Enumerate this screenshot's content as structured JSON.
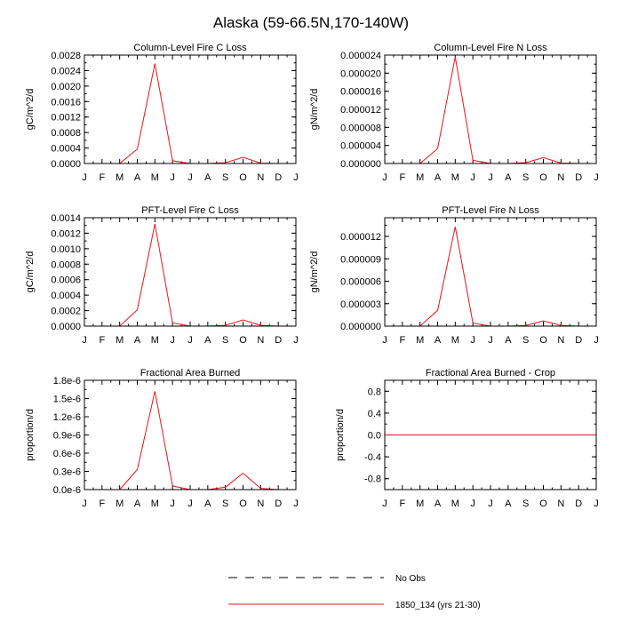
{
  "figure": {
    "title": "Alaska (59-66.5N,170-140W)"
  },
  "legend": {
    "entries": [
      {
        "label": "No Obs",
        "style": "dashed",
        "color": "#000000"
      },
      {
        "label": "1850_134 (yrs 21-30)",
        "style": "solid",
        "color": "#e8141c"
      }
    ]
  },
  "chart_data": [
    {
      "type": "line",
      "title": "Column-Level Fire C Loss",
      "ylabel": "gC/m^2/d",
      "categories": [
        "J",
        "F",
        "M",
        "A",
        "M",
        "J",
        "J",
        "A",
        "S",
        "O",
        "N",
        "D",
        "J"
      ],
      "ylim": [
        0,
        0.0028
      ],
      "yticks": [
        "0.0000",
        "0.0004",
        "0.0008",
        "0.0012",
        "0.0016",
        "0.0020",
        "0.0024",
        "0.0028"
      ],
      "ytick_values": [
        0,
        0.0004,
        0.0008,
        0.0012,
        0.0016,
        0.002,
        0.0024,
        0.0028
      ],
      "series": [
        {
          "name": "1850_134 (yrs 21-30)",
          "color": "#e8141c",
          "values": [
            0,
            0,
            0,
            0.00037,
            0.00258,
            7e-05,
            0,
            0,
            2e-05,
            0.00016,
            1e-05,
            0,
            0
          ]
        }
      ]
    },
    {
      "type": "line",
      "title": "Column-Level Fire N Loss",
      "ylabel": "gN/m^2/d",
      "categories": [
        "J",
        "F",
        "M",
        "A",
        "M",
        "J",
        "J",
        "A",
        "S",
        "O",
        "N",
        "D",
        "J"
      ],
      "ylim": [
        0,
        2.4e-05
      ],
      "yticks": [
        "0.000000",
        "0.000004",
        "0.000008",
        "0.000012",
        "0.000016",
        "0.000020",
        "0.000024"
      ],
      "ytick_values": [
        0,
        4e-06,
        8e-06,
        1.2e-05,
        1.6e-05,
        2e-05,
        2.4e-05
      ],
      "series": [
        {
          "name": "1850_134 (yrs 21-30)",
          "color": "#e8141c",
          "values": [
            0,
            0,
            0,
            3.3e-06,
            2.36e-05,
            7e-07,
            0,
            0,
            2e-07,
            1.3e-06,
            1e-07,
            0,
            0
          ]
        }
      ]
    },
    {
      "type": "line",
      "title": "PFT-Level Fire C Loss",
      "ylabel": "gC/m^2/d",
      "categories": [
        "J",
        "F",
        "M",
        "A",
        "M",
        "J",
        "J",
        "A",
        "S",
        "O",
        "N",
        "D",
        "J"
      ],
      "ylim": [
        0,
        0.0014
      ],
      "yticks": [
        "0.0000",
        "0.0002",
        "0.0004",
        "0.0006",
        "0.0008",
        "0.0010",
        "0.0012",
        "0.0014"
      ],
      "ytick_values": [
        0,
        0.0002,
        0.0004,
        0.0006,
        0.0008,
        0.001,
        0.0012,
        0.0014
      ],
      "series": [
        {
          "name": "1850_134 (yrs 21-30)",
          "color": "#e8141c",
          "values": [
            0,
            0,
            0,
            0.00021,
            0.00132,
            4e-05,
            0,
            0,
            1e-05,
            8e-05,
            1e-05,
            0,
            0
          ]
        }
      ]
    },
    {
      "type": "line",
      "title": "PFT-Level Fire N Loss",
      "ylabel": "gN/m^2/d",
      "categories": [
        "J",
        "F",
        "M",
        "A",
        "M",
        "J",
        "J",
        "A",
        "S",
        "O",
        "N",
        "D",
        "J"
      ],
      "ylim": [
        0,
        1.45e-05
      ],
      "yticks": [
        "0.000000",
        "0.000003",
        "0.000006",
        "0.000009",
        "0.000012"
      ],
      "ytick_values": [
        0,
        3e-06,
        6e-06,
        9e-06,
        1.2e-05
      ],
      "series": [
        {
          "name": "1850_134 (yrs 21-30)",
          "color": "#e8141c",
          "values": [
            0,
            0,
            0,
            2.1e-06,
            1.33e-05,
            4e-07,
            0,
            0,
            1e-07,
            7e-07,
            1e-07,
            0,
            0
          ]
        }
      ]
    },
    {
      "type": "line",
      "title": "Fractional Area Burned",
      "ylabel": "proportion/d",
      "categories": [
        "J",
        "F",
        "M",
        "A",
        "M",
        "J",
        "J",
        "A",
        "S",
        "O",
        "N",
        "D",
        "J"
      ],
      "ylim": [
        0,
        1.8e-06
      ],
      "yticks": [
        "0.0e-6",
        "0.3e-6",
        "0.6e-6",
        "0.9e-6",
        "1.2e-6",
        "1.5e-6",
        "1.8e-6"
      ],
      "ytick_values": [
        0,
        3e-07,
        6e-07,
        9e-07,
        1.2e-06,
        1.5e-06,
        1.8e-06
      ],
      "series": [
        {
          "name": "1850_134 (yrs 21-30)",
          "color": "#e8141c",
          "values": [
            0,
            0,
            0,
            3.3e-07,
            1.62e-06,
            6e-08,
            0,
            0,
            4e-08,
            2.7e-07,
            2e-08,
            0,
            0
          ]
        }
      ]
    },
    {
      "type": "line",
      "title": "Fractional Area Burned - Crop",
      "ylabel": "proportion/d",
      "categories": [
        "J",
        "F",
        "M",
        "A",
        "M",
        "J",
        "J",
        "A",
        "S",
        "O",
        "N",
        "D",
        "J"
      ],
      "ylim": [
        -1,
        1
      ],
      "yticks": [
        "-0.8",
        "-0.4",
        "0.0",
        "0.4",
        "0.8"
      ],
      "ytick_values": [
        -0.8,
        -0.4,
        0,
        0.4,
        0.8
      ],
      "series": [
        {
          "name": "1850_134 (yrs 21-30)",
          "color": "#e8141c",
          "values": [
            0,
            0,
            0,
            0,
            0,
            0,
            0,
            0,
            0,
            0,
            0,
            0,
            0
          ]
        }
      ]
    }
  ]
}
